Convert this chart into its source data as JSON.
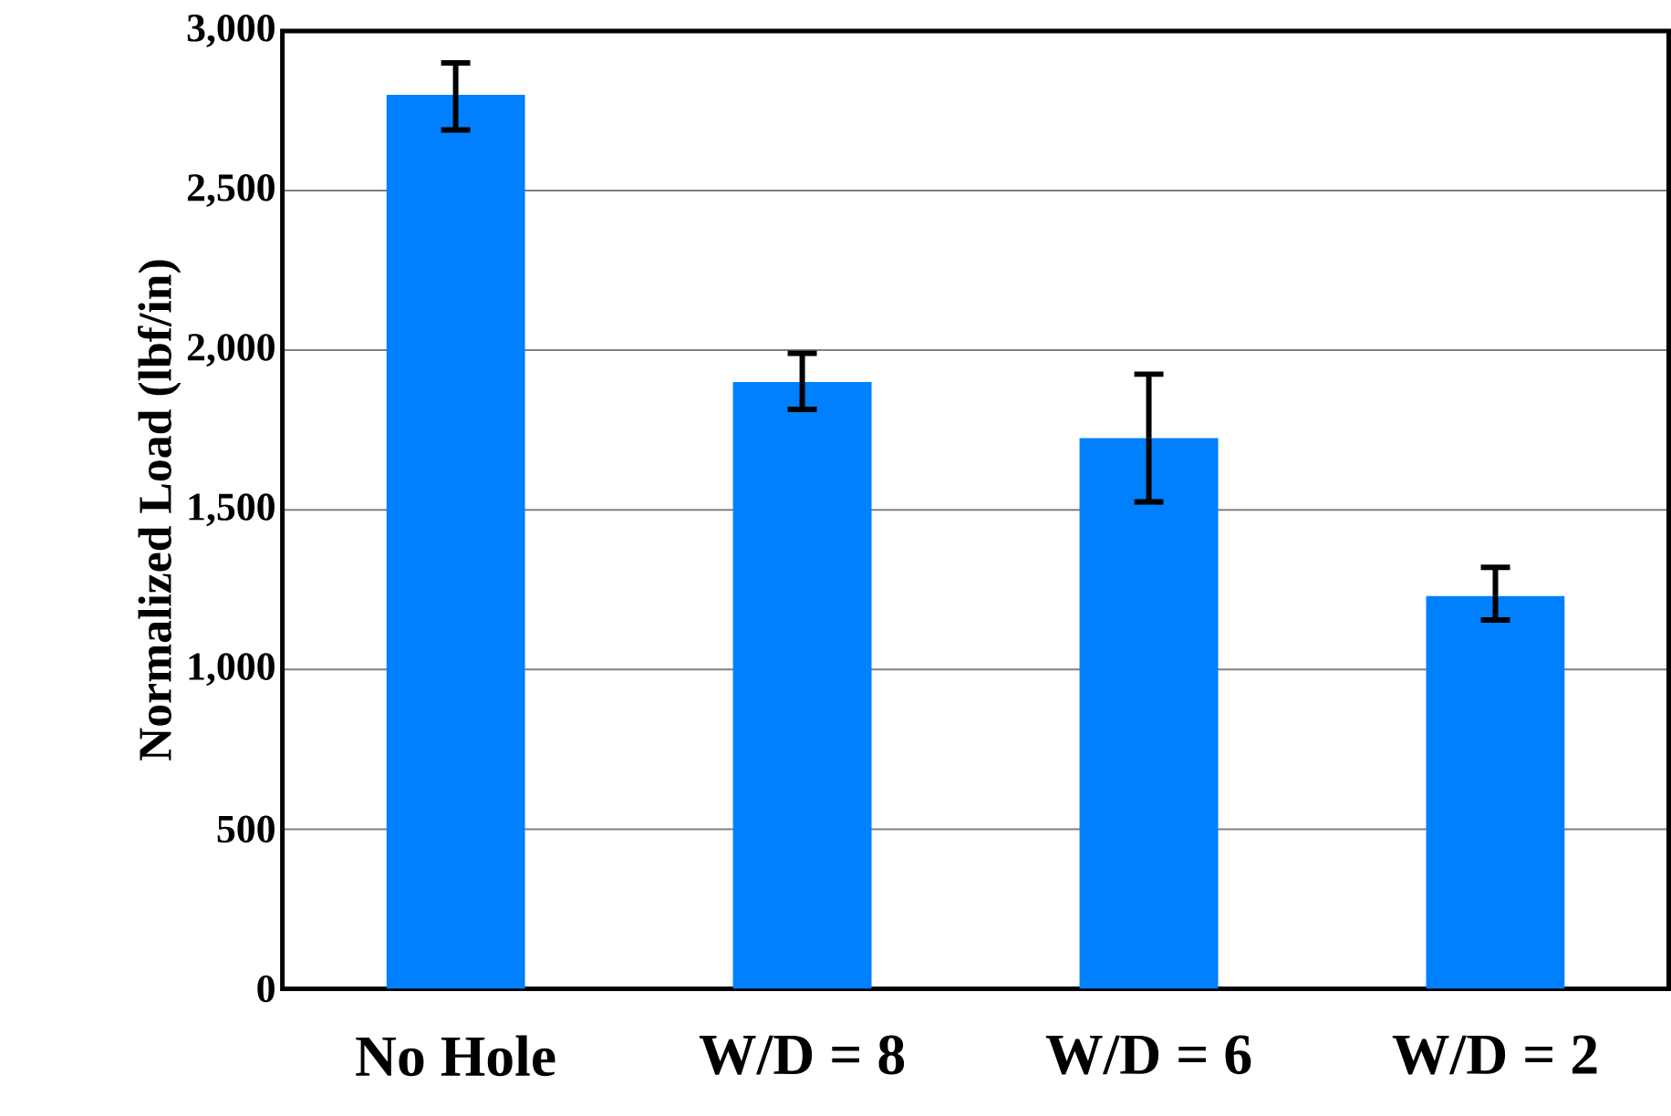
{
  "chart_data": {
    "type": "bar",
    "ylabel": "Normalized Load (lbf/in)",
    "categories": [
      "No Hole",
      "W/D = 8",
      "W/D = 6",
      "W/D = 2"
    ],
    "values": [
      2800,
      1900,
      1725,
      1230
    ],
    "errors": [
      [
        2690,
        2900
      ],
      [
        1815,
        1990
      ],
      [
        1525,
        1925
      ],
      [
        1155,
        1320
      ]
    ],
    "color": "#0080ff",
    "ylim": [
      0,
      3000
    ],
    "yticks": [
      {
        "value": 0,
        "label": "0"
      },
      {
        "value": 500,
        "label": "500"
      },
      {
        "value": 1000,
        "label": "1,000"
      },
      {
        "value": 1500,
        "label": "1,500"
      },
      {
        "value": 2000,
        "label": "2,000"
      },
      {
        "value": 2500,
        "label": "2,500"
      },
      {
        "value": 3000,
        "label": "3,000"
      }
    ],
    "grid": "y"
  }
}
